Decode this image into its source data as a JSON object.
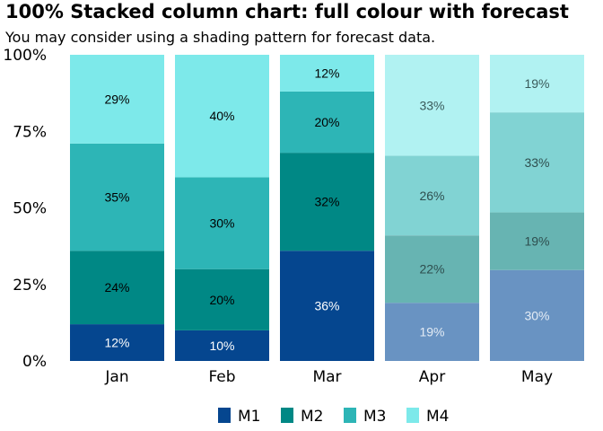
{
  "chart_data": {
    "type": "bar",
    "stacked": true,
    "percent": true,
    "title": "100% Stacked column chart: full colour with forecast",
    "subtitle": "You may consider using a shading pattern for forecast data.",
    "categories": [
      "Jan",
      "Feb",
      "Mar",
      "Apr",
      "May"
    ],
    "forecast_categories": [
      "Apr",
      "May"
    ],
    "y_ticks": [
      "0%",
      "25%",
      "50%",
      "75%",
      "100%"
    ],
    "ylim": [
      0,
      100
    ],
    "legend_position": "bottom",
    "series": [
      {
        "name": "M1",
        "values": [
          12,
          10,
          36,
          19,
          30
        ],
        "labels": [
          "12%",
          "10%",
          "36%",
          "19%",
          "30%"
        ],
        "color": "#05468f",
        "forecast_color": "#6993c2"
      },
      {
        "name": "M2",
        "values": [
          24,
          20,
          32,
          22,
          19
        ],
        "labels": [
          "24%",
          "20%",
          "32%",
          "22%",
          "19%"
        ],
        "color": "#008885",
        "forecast_color": "#67b4b2"
      },
      {
        "name": "M3",
        "values": [
          35,
          30,
          20,
          26,
          33
        ],
        "labels": [
          "35%",
          "30%",
          "20%",
          "26%",
          "33%"
        ],
        "color": "#2db5b6",
        "forecast_color": "#81d3d3"
      },
      {
        "name": "M4",
        "values": [
          29,
          40,
          12,
          33,
          19
        ],
        "labels": [
          "29%",
          "40%",
          "12%",
          "33%",
          "19%"
        ],
        "color": "#7de9ea",
        "forecast_color": "#b1f2f2"
      }
    ]
  }
}
